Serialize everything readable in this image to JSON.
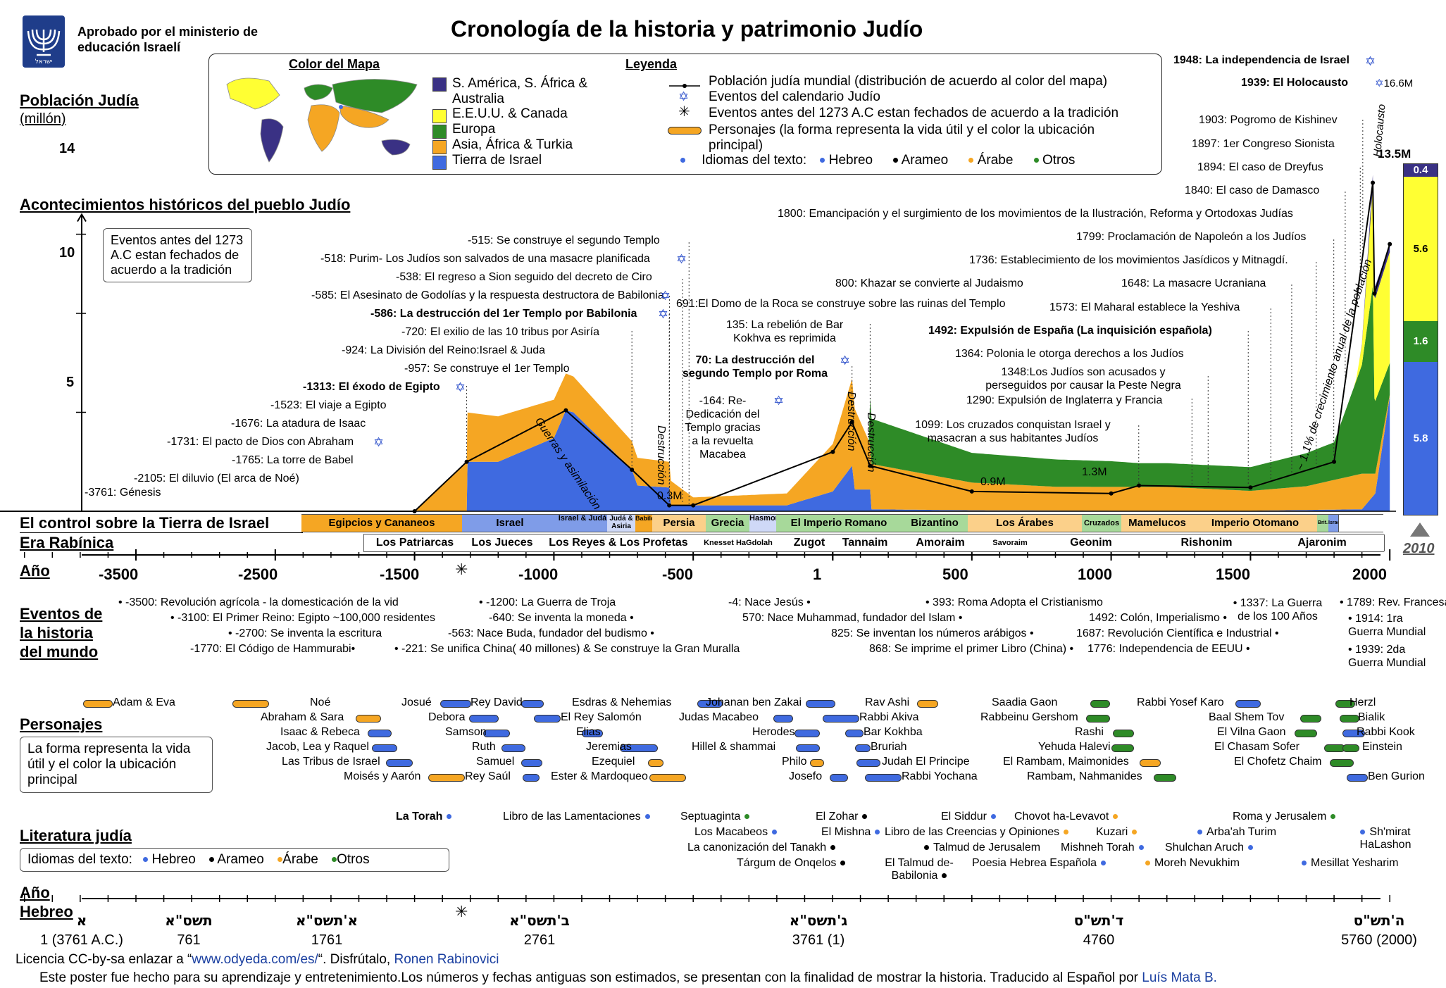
{
  "header": {
    "emblem_text": "ישראל",
    "approved": "Aprobado por el ministerio de educación Israelí",
    "title": "Cronología de la historia y patrimonio Judío"
  },
  "map_legend": {
    "title": "Color del Mapa",
    "items": [
      {
        "label": "S. América, S. África & Australia",
        "color": "#3a3184"
      },
      {
        "label": "E.E.U.U. & Canada",
        "color": "#ffff33"
      },
      {
        "label": "Europa",
        "color": "#2e8b27"
      },
      {
        "label": "Asia, África & Turkia",
        "color": "#f5a623"
      },
      {
        "label": "Tierra de Israel",
        "color": "#3f6ae0"
      }
    ]
  },
  "legend": {
    "title": "Leyenda",
    "items": [
      "Población judía mundial (distribución de acuerdo al color del mapa)",
      "Eventos del calendario Judío",
      "Eventos antes del 1273 A.C estan fechados de acuerdo a la tradición",
      "Personajes (la forma representa la vida útil y el color la ubicación principal)"
    ],
    "languages_label": "Idiomas del  texto:",
    "languages": [
      {
        "name": "Hebreo",
        "color": "#3f6ae0"
      },
      {
        "name": "Arameo",
        "color": "#000000"
      },
      {
        "name": "Árabe",
        "color": "#f5a623"
      },
      {
        "name": "Otros",
        "color": "#2e8b27"
      }
    ]
  },
  "sections": {
    "population": "Población Judía",
    "population_unit": "(millón)",
    "events": "Acontecimientos históricos del pueblo Judío",
    "control": "El control sobre la Tierra de Israel",
    "rabbinic": "Era Rabínica",
    "year": "Año",
    "world": "Eventos de la historia del mundo",
    "people": "Personajes",
    "literature": "Literatura judía",
    "hebrew_year": "Año Hebreo"
  },
  "tradition_note": "Eventos antes del 1273 A.C estan fechados de acuerdo a la tradición",
  "people_note": "La forma representa la vida útil y el color la ubicación principal",
  "chart_data": {
    "type": "area",
    "title": "Cronología de la historia y patrimonio Judío",
    "ylabel": "Población Judía (millón)",
    "xlabel": "Año",
    "xlim": [
      -3700,
      2010
    ],
    "ylim": [
      0,
      15
    ],
    "yticks": [
      5,
      10,
      14
    ],
    "xticks": [
      -3500,
      -3000,
      -2500,
      -2000,
      -1500,
      -1000,
      -500,
      1,
      500,
      1000,
      1500,
      2000
    ],
    "series": [
      {
        "name": "Tierra de Israel",
        "color": "#3f6ae0",
        "points": [
          [
            -1500,
            0
          ],
          [
            -1313,
            0
          ],
          [
            -1313,
            2.5
          ],
          [
            -1200,
            2.5
          ],
          [
            -1000,
            3.7
          ],
          [
            -957,
            5.1
          ],
          [
            -930,
            5.0
          ],
          [
            -720,
            2.1
          ],
          [
            -700,
            1.3
          ],
          [
            -586,
            1.2
          ],
          [
            -586,
            0.3
          ],
          [
            -538,
            0.3
          ],
          [
            -300,
            0.3
          ],
          [
            -164,
            0.3
          ],
          [
            1,
            1.0
          ],
          [
            70,
            2.3
          ],
          [
            70,
            1.1
          ],
          [
            135,
            1.1
          ],
          [
            135,
            0.1
          ],
          [
            500,
            0.05
          ],
          [
            1000,
            0.03
          ],
          [
            1500,
            0.03
          ],
          [
            1900,
            0.1
          ],
          [
            1948,
            0.9
          ],
          [
            2000,
            5.8
          ]
        ]
      },
      {
        "name": "Asia, África & Turkia",
        "color": "#f5a623",
        "points": [
          [
            -1500,
            0
          ],
          [
            -1313,
            2.5
          ],
          [
            -700,
            1.4
          ],
          [
            -586,
            1.3
          ],
          [
            -500,
            0.4
          ],
          [
            -164,
            0.6
          ],
          [
            1,
            2.4
          ],
          [
            70,
            4.4
          ],
          [
            135,
            2.3
          ],
          [
            500,
            1.4
          ],
          [
            800,
            1.2
          ],
          [
            1000,
            1.2
          ],
          [
            1200,
            1.2
          ],
          [
            1500,
            1.0
          ],
          [
            1700,
            1.2
          ],
          [
            1900,
            1.8
          ],
          [
            1948,
            1.0
          ],
          [
            2000,
            0.1
          ]
        ]
      },
      {
        "name": "Europa",
        "color": "#2e8b27",
        "points": [
          [
            135,
            2.3
          ],
          [
            500,
            1.5
          ],
          [
            1000,
            1.3
          ],
          [
            1100,
            1.2
          ],
          [
            1500,
            1.2
          ],
          [
            1800,
            1.9
          ],
          [
            1900,
            5.5
          ],
          [
            1939,
            9.5
          ],
          [
            1945,
            3.8
          ],
          [
            2000,
            1.6
          ]
        ]
      },
      {
        "name": "E.E.U.U. & Canada",
        "color": "#ffff33",
        "points": [
          [
            1880,
            0.1
          ],
          [
            1900,
            1.0
          ],
          [
            1939,
            5.0
          ],
          [
            1948,
            5.2
          ],
          [
            2000,
            5.6
          ]
        ]
      },
      {
        "name": "S. América, S. África & Australia",
        "color": "#3a3184",
        "points": [
          [
            1900,
            0.05
          ],
          [
            1939,
            0.6
          ],
          [
            1948,
            0.6
          ],
          [
            2000,
            0.4
          ]
        ]
      }
    ],
    "total_points": [
      [
        -3761,
        0
      ],
      [
        -1500,
        0
      ],
      [
        -1313,
        2.5
      ],
      [
        -957,
        5.1
      ],
      [
        -720,
        2.1
      ],
      [
        -586,
        0.3
      ],
      [
        -500,
        0.3
      ],
      [
        1,
        3.0
      ],
      [
        70,
        4.5
      ],
      [
        135,
        2.3
      ],
      [
        500,
        1.0
      ],
      [
        1000,
        0.9
      ],
      [
        1100,
        1.3
      ],
      [
        1500,
        1.2
      ],
      [
        1800,
        2.5
      ],
      [
        1939,
        16.6
      ],
      [
        1945,
        11.0
      ],
      [
        2000,
        13.5
      ]
    ],
    "annotations": [
      "0.3M",
      "0.9M",
      "1.3M",
      "13.5M",
      "16.6M",
      "Guerras y asimilación",
      "Destrucción",
      "~ 1.1% de crecimiento anual de la población",
      "Holocausto"
    ],
    "final_distribution": [
      {
        "name": "S. América, S. África & Australia",
        "value": 0.4
      },
      {
        "name": "E.E.U.U. & Canada",
        "value": 5.6
      },
      {
        "name": "Europa",
        "value": 1.6
      },
      {
        "name": "Tierra de Israel",
        "value": 5.8
      }
    ],
    "final_year": "2010"
  },
  "events_left": [
    {
      "t": "-3761: Génesis",
      "s": ""
    },
    {
      "t": "-2105: El diluvio (El arca de Noé)",
      "s": ""
    },
    {
      "t": "-1765: La torre de Babel",
      "s": ""
    },
    {
      "t": "-1731: El pacto de Dios con Abraham",
      "s": "✡"
    },
    {
      "t": "-1676: La atadura de Isaac",
      "s": ""
    },
    {
      "t": "-1523: El viaje a Egipto",
      "s": ""
    },
    {
      "t": "-1313: El éxodo de Egipto",
      "s": "✡",
      "bold": true
    },
    {
      "t": "-957: Se construye el 1er Templo",
      "s": ""
    },
    {
      "t": "-924: La  División del Reino:Israel & Juda",
      "s": ""
    },
    {
      "t": "-720: El exilio de las 10 tribus por Asiría",
      "s": ""
    },
    {
      "t": "-586: La destrucción del 1er Templo por Babilonia",
      "s": "✡",
      "bold": true
    },
    {
      "t": "-585: El Asesinato de Godolías y la respuesta destructora de Babilonia",
      "s": "✡"
    },
    {
      "t": "-538: El regreso a Sion seguido del decreto de Ciro",
      "s": ""
    },
    {
      "t": "-518: Purim- Los Judíos  son salvados de una masacre planificada",
      "s": "✡"
    },
    {
      "t": "-515: Se construye  el segundo Templo",
      "s": ""
    }
  ],
  "events_mid": [
    {
      "t": "-164: Re- Dedicación del Templo gracias a la revuelta Macabea"
    },
    {
      "t": "70: La destrucción del segundo Templo por Roma"
    },
    {
      "t": "135: La rebelión de Bar Kokhva es reprimida"
    },
    {
      "t": "691:El Domo de la Roca se construye sobre las ruinas del Templo"
    },
    {
      "t": "800: Khazar se convierte al Judaismo"
    },
    {
      "t": "1099: Los cruzados conquistan Israel y masacran a sus habitantes Judíos"
    },
    {
      "t": "1290: Expulsión de Inglaterra y Francia"
    },
    {
      "t": "1348:Los Judíos son acusados y perseguidos por causar la Peste Negra"
    },
    {
      "t": "1364: Polonia le otorga derechos a los Judíos"
    },
    {
      "t": "1492: Expulsión de España (La inquisición  española)"
    },
    {
      "t": "1573: El Maharal establece la Yeshiva"
    },
    {
      "t": "1648: La masacre Ucraniana"
    },
    {
      "t": "1736: Establecimiento de los movimientos Jasídicos y Mitnagdí."
    },
    {
      "t": "1799: Proclamación de Napoleón a los Judíos"
    },
    {
      "t": "1800: Emancipación y el surgimiento de los movimientos de la Ilustración, Reforma y Ortodoxas Judías"
    },
    {
      "t": "1840: El caso de Damasco"
    },
    {
      "t": "1894: El caso de Dreyfus"
    },
    {
      "t": "1897: 1er Congreso Sionista"
    },
    {
      "t": "1903: Pogromo de Kishinev"
    },
    {
      "t": "1939: El Holocausto"
    },
    {
      "t": "1948: La independencia de Israel"
    }
  ],
  "control": [
    "Egipcios y Cananeos",
    "Israel",
    "Israel & Judá",
    "Judá & Asiria",
    "Babilonia",
    "Persia",
    "Grecia",
    "Hasmoneos",
    "El Imperio Romano",
    "Bizantino",
    "Los Árabes",
    "Cruzados",
    "Mamelucos",
    "Imperio Otomano",
    "Brit.",
    "Israel"
  ],
  "rabbinic": [
    "Los Patriarcas",
    "Los Jueces",
    "Los Reyes & Los Profetas",
    "Knesset HaGdolah",
    "Zugot",
    "Tannaim",
    "Amoraim",
    "Savoraim",
    "Geonim",
    "Rishonim",
    "Ajaronim"
  ],
  "year_ticks": [
    "-3500",
    "-2500",
    "-1500",
    "-1000",
    "-2000",
    "-500",
    "1",
    "500",
    "1000",
    "1500",
    "2000",
    "-3000"
  ],
  "world_events": [
    "-3500: Revolución agrícola - la domesticación de la vid",
    "-3100: El Primer Reino: Egipto ~100,000 residentes",
    "-2700: Se inventa la escritura",
    "-1770: El Código de Hammurabi",
    "-1200: La Guerra de Troja",
    "-640: Se inventa la moneda",
    "-563: Nace Buda, fundador del budismo",
    "-221: Se unifica China( 40 millones) & Se construye la Gran Muralla",
    "-4: Nace Jesús",
    "393: Roma Adopta el Cristianismo",
    "570: Nace Muhammad, fundador del Islam",
    "825: Se inventan los números arábigos",
    "868: Se imprime el primer Libro (China)",
    "1337: La Guerra de los 100 Años",
    "1492: Colón, Imperialismo",
    "1687: Revolución Científica e Industrial",
    "1776: Independencia de EEUU",
    "1789: Rev. Francesa",
    "1914: 1ra Guerra Mundial",
    "1939: 2da Guerra Mundial"
  ],
  "people": [
    "Adam & Eva",
    "Noé",
    "Abraham & Sara",
    "Isaac & Rebeca",
    "Jacob, Lea y Raquel",
    "Las Tribus de Israel",
    "Moisés y Aarón",
    "Josué",
    "Debora",
    "Samson",
    "Ruth",
    "Samuel",
    "Rey Saúl",
    "Rey David",
    "El Rey Salomón",
    "Elias",
    "Jeremias",
    "Ezequiel",
    "Ester & Mardoqueo",
    "Esdras & Nehemias",
    "Johanan ben Zakai",
    "Judas Macabeo",
    "Herodes",
    "Hillel & shammai",
    "Philo",
    "Josefo",
    "Rav Ashi",
    "Rabbi Akiva",
    "Bar Kokhba",
    "Bruriah",
    "Judah El Principe",
    "Rabbi Yochana",
    "Saadia Gaon",
    "Rabbeinu Gershom",
    "Rashi",
    "Yehuda Halevi",
    "El Rambam, Maimonides",
    "Rambam, Nahmanides",
    "Rabbi  Yosef Karo",
    "Baal Shem Tov",
    "El Vilna Gaon",
    "El Chasam Sofer",
    "El Chofetz Chaim",
    "Herzl",
    "Bialik",
    "Rabbi Kook",
    "Einstein",
    "Ben Gurion"
  ],
  "literature": [
    "La Torah",
    "Libro de las Lamentaciones",
    "Septuaginta",
    "Los Macabeos",
    "La canonización del Tanakh",
    "Tárgum de Onqelos",
    "El Zohar",
    "El Mishna",
    "El Talmud de- Babilonia",
    "El  Siddur",
    "Libro de las Creencias y Opiniones",
    "Talmud de Jerusalem",
    "Poesia Hebrea Española",
    "Chovot ha-Levavot",
    "Kuzari",
    "Mishneh Torah",
    "Moreh Nevukhim",
    "Arba'ah Turim",
    "Shulchan Aruch",
    "Roma y Jerusalem",
    "Sh'mirat HaLashon",
    "Mesillat Yesharim"
  ],
  "hebrew_years": [
    {
      "heb": "א",
      "num": "1 (3761 A.C.)"
    },
    {
      "heb": "תשס\"א",
      "num": "761"
    },
    {
      "heb": "א'תשס\"א",
      "num": "1761"
    },
    {
      "heb": "ב'תשס\"א",
      "num": "2761"
    },
    {
      "heb": "ג'תשס\"א",
      "num": "3761 (1)"
    },
    {
      "heb": "ד'תש\"ס",
      "num": "4760"
    },
    {
      "heb": "ה'תש\"ס",
      "num": "5760 (2000)"
    }
  ],
  "footer": {
    "license": "Licencia CC-by-sa enlazar a “",
    "url": "www.odyeda.com/es/",
    "license_end": "“. Disfrútalo, ",
    "author": "Ronen Rabinovici",
    "poster": "Este poster fue hecho para su aprendizaje y entretenimiento.Los números y fechas antiguas son estimados, se presentan con la finalidad de mostrar la historia. Traducido al Español por ",
    "translator": "Luís Mata B."
  }
}
